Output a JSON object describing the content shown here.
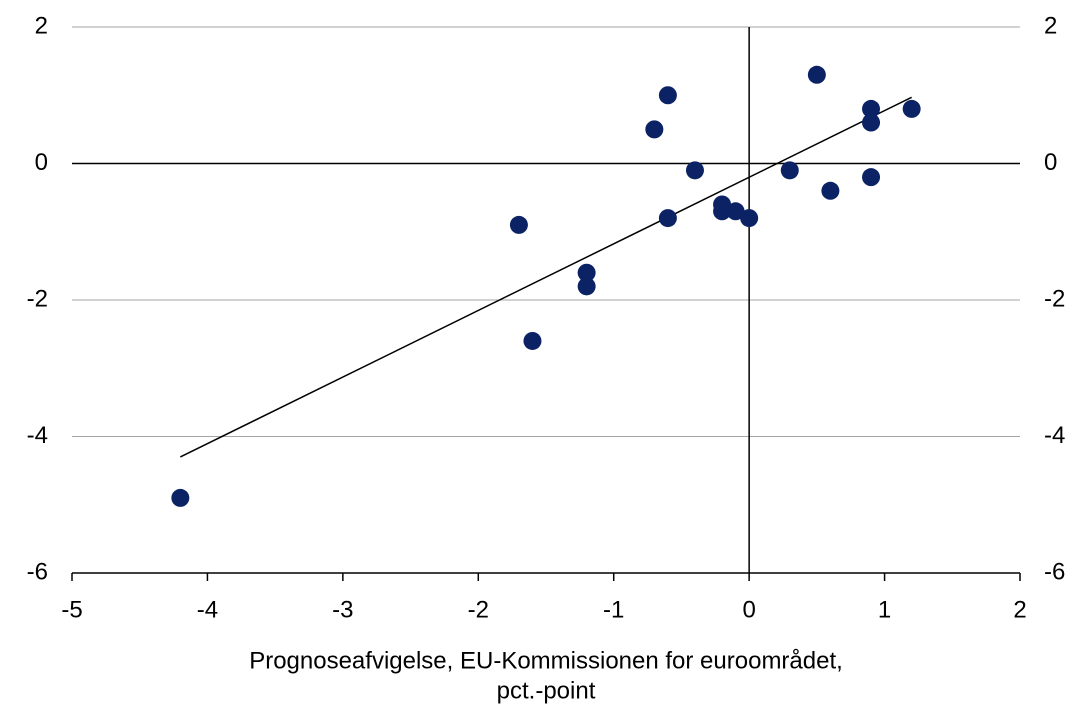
{
  "chart_data": {
    "type": "scatter",
    "xlabel": [
      "Prognoseafvigelse, EU-Kommissionen for euroområdet,",
      "pct.-point"
    ],
    "x": [
      -4.2,
      -1.7,
      -1.6,
      -1.2,
      -1.2,
      -0.7,
      -0.6,
      -0.6,
      -0.4,
      -0.2,
      -0.2,
      -0.1,
      0,
      0.3,
      0.5,
      0.6,
      0.9,
      0.9,
      0.9,
      1.2
    ],
    "y": [
      -4.9,
      -0.9,
      -2.6,
      -1.6,
      -1.8,
      0.5,
      1.0,
      -0.8,
      -0.1,
      -0.6,
      -0.7,
      -0.7,
      -0.8,
      -0.1,
      1.3,
      -0.4,
      0.8,
      0.6,
      -0.2,
      0.8
    ],
    "color": "#0b2265",
    "trendline": {
      "x": [
        -4.2,
        1.2
      ],
      "y": [
        -4.3,
        0.97
      ],
      "color": "#000000"
    },
    "xlim": [
      -5,
      2
    ],
    "xticks": [
      -5,
      -4,
      -3,
      -2,
      -1,
      0,
      1,
      2
    ],
    "ylim": [
      -6,
      2
    ],
    "yticks": [
      -6,
      -4,
      -2,
      0,
      2
    ],
    "y2lim": [
      -6,
      2
    ],
    "y2ticks": [
      -6,
      -4,
      -2,
      0,
      2
    ],
    "grid": true
  }
}
